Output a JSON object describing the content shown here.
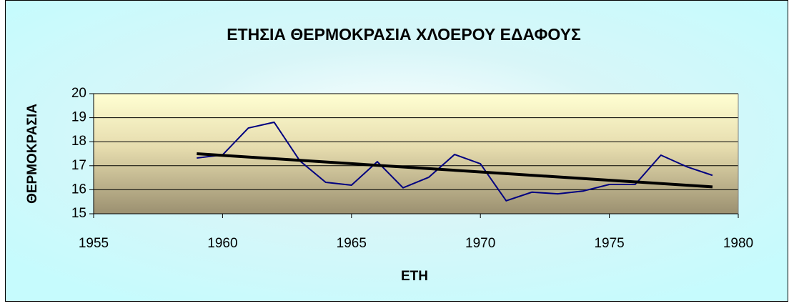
{
  "chart_data": {
    "type": "line",
    "title": "ΕΤΗΣΙΑ ΘΕΡΜΟΚΡΑΣΙΑ ΧΛΟΕΡΟΥ ΕΔΑΦΟΥΣ",
    "x_label": "ΕΤΗ",
    "y_label": "ΘΕΡΜΟΚΡΑΣΙΑ",
    "x": [
      1959,
      1960,
      1961,
      1962,
      1963,
      1964,
      1965,
      1966,
      1967,
      1968,
      1969,
      1970,
      1971,
      1972,
      1973,
      1974,
      1975,
      1976,
      1977,
      1978,
      1979
    ],
    "series": [
      {
        "color": "#000080",
        "values": [
          17.32,
          17.45,
          18.57,
          18.81,
          17.2,
          16.31,
          16.19,
          17.17,
          16.08,
          16.52,
          17.47,
          17.08,
          15.54,
          15.9,
          15.83,
          15.95,
          16.22,
          16.22,
          17.44,
          16.96,
          16.6
        ]
      }
    ],
    "trendline": {
      "color": "#000000",
      "x": [
        1959,
        1979
      ],
      "values": [
        17.5,
        16.12
      ]
    },
    "xlim": [
      1955,
      1980
    ],
    "xticks": [
      1955,
      1960,
      1965,
      1970,
      1975,
      1980
    ],
    "ylim": [
      15,
      20
    ],
    "yticks": [
      15,
      16,
      17,
      18,
      19,
      20
    ],
    "grid": true
  }
}
